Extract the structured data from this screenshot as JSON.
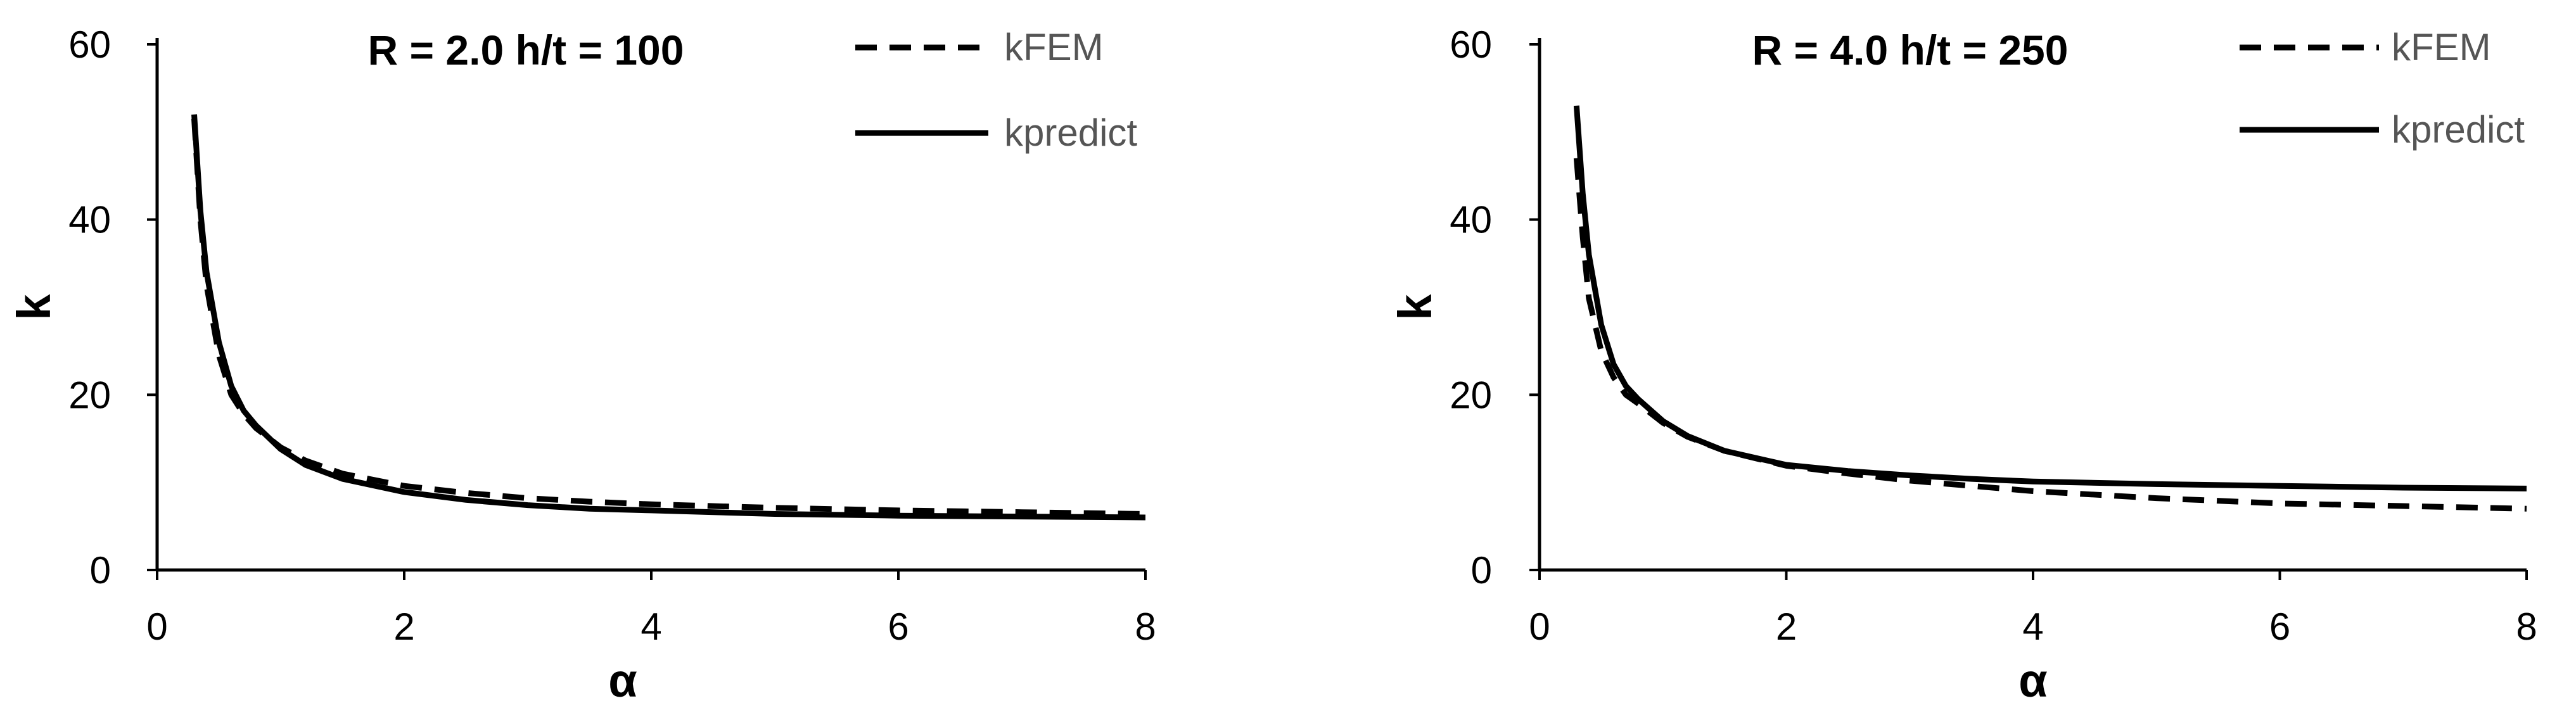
{
  "chart_data": [
    {
      "type": "line",
      "title": "R = 2.0 h/t = 100",
      "xlabel": "α",
      "ylabel": "k",
      "xlim": [
        0,
        8
      ],
      "ylim": [
        0,
        60
      ],
      "xticks": [
        0,
        2,
        4,
        6,
        8
      ],
      "yticks": [
        0,
        20,
        40,
        60
      ],
      "grid": false,
      "legend_position": "top-right",
      "series": [
        {
          "name": "kFEM",
          "style": "dashed",
          "x": [
            0.3,
            0.35,
            0.4,
            0.5,
            0.6,
            0.7,
            0.8,
            1.0,
            1.2,
            1.5,
            2.0,
            2.5,
            3.0,
            3.5,
            4.0,
            5.0,
            6.0,
            7.0,
            8.0
          ],
          "y": [
            51.5,
            40.0,
            32.5,
            24.5,
            20.0,
            17.8,
            16.2,
            14.0,
            12.5,
            11.0,
            9.6,
            8.8,
            8.2,
            7.8,
            7.5,
            7.1,
            6.8,
            6.6,
            6.4
          ]
        },
        {
          "name": "kpredict",
          "style": "solid",
          "x": [
            0.3,
            0.35,
            0.4,
            0.5,
            0.6,
            0.7,
            0.8,
            1.0,
            1.2,
            1.5,
            2.0,
            2.5,
            3.0,
            3.5,
            4.0,
            5.0,
            6.0,
            7.0,
            8.0
          ],
          "y": [
            52.0,
            41.0,
            34.0,
            26.0,
            21.0,
            18.2,
            16.5,
            13.8,
            12.0,
            10.4,
            8.9,
            8.0,
            7.4,
            7.0,
            6.8,
            6.4,
            6.2,
            6.1,
            6.0
          ]
        }
      ]
    },
    {
      "type": "line",
      "title": "R = 4.0 h/t = 250",
      "xlabel": "α",
      "ylabel": "k",
      "xlim": [
        0,
        8
      ],
      "ylim": [
        0,
        60
      ],
      "xticks": [
        0,
        2,
        4,
        6,
        8
      ],
      "yticks": [
        0,
        20,
        40,
        60
      ],
      "grid": false,
      "legend_position": "top-right",
      "series": [
        {
          "name": "kFEM",
          "style": "dashed",
          "x": [
            0.3,
            0.35,
            0.4,
            0.5,
            0.6,
            0.7,
            0.8,
            1.0,
            1.2,
            1.5,
            2.0,
            2.5,
            3.0,
            3.5,
            4.0,
            5.0,
            6.0,
            7.0,
            8.0
          ],
          "y": [
            47.0,
            38.0,
            31.0,
            25.0,
            22.0,
            20.0,
            19.0,
            16.8,
            15.2,
            13.6,
            11.9,
            11.0,
            10.2,
            9.6,
            9.0,
            8.2,
            7.6,
            7.3,
            7.0
          ]
        },
        {
          "name": "kpredict",
          "style": "solid",
          "x": [
            0.3,
            0.35,
            0.4,
            0.5,
            0.6,
            0.7,
            0.8,
            1.0,
            1.2,
            1.5,
            2.0,
            2.5,
            3.0,
            3.5,
            4.0,
            5.0,
            6.0,
            7.0,
            8.0
          ],
          "y": [
            53.0,
            43.0,
            36.0,
            28.0,
            23.5,
            21.0,
            19.5,
            17.0,
            15.3,
            13.6,
            12.0,
            11.3,
            10.8,
            10.4,
            10.1,
            9.8,
            9.6,
            9.4,
            9.3
          ]
        }
      ]
    }
  ]
}
